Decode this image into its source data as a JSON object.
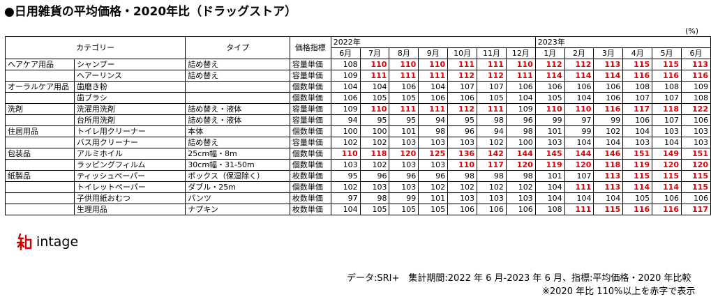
{
  "title": "●日用雑貨の平均価格・2020年比（ドラッグストア）",
  "unit": "(%)",
  "source": "データ:SRI+　集計期間:2022 年 6 月-2023 年 6 月、指標:平均価格・2020 年比較",
  "note": "※2020 年比 110%以上を赤字で表示",
  "logo_text": "intage",
  "colors": {
    "highlight": "#e00000",
    "text": "#000000"
  },
  "chart_data": {
    "type": "table",
    "headers": {
      "category": "カテゴリー",
      "type": "タイプ",
      "index": "価格指標"
    },
    "years": [
      {
        "label": "2022年",
        "span": 7
      },
      {
        "label": "2023年",
        "span": 6
      }
    ],
    "months": [
      "6月",
      "7月",
      "8月",
      "9月",
      "10月",
      "11月",
      "12月",
      "1月",
      "2月",
      "3月",
      "4月",
      "5月",
      "6月"
    ],
    "highlight_threshold": 110,
    "rows": [
      {
        "category": "ヘアケア用品",
        "item": "シャンプー",
        "type": "詰め替え",
        "index": "容量単価",
        "values": [
          108,
          110,
          110,
          110,
          111,
          111,
          110,
          112,
          112,
          113,
          115,
          115,
          113
        ]
      },
      {
        "category": "",
        "item": "ヘアーリンス",
        "type": "詰め替え",
        "index": "容量単価",
        "values": [
          109,
          111,
          111,
          111,
          112,
          112,
          111,
          114,
          114,
          114,
          116,
          116,
          116
        ]
      },
      {
        "category": "オーラルケア用品",
        "item": "歯磨き粉",
        "type": "",
        "index": "個数単価",
        "values": [
          104,
          104,
          106,
          104,
          107,
          107,
          106,
          106,
          106,
          106,
          108,
          108,
          109
        ]
      },
      {
        "category": "",
        "item": "歯ブラシ",
        "type": "",
        "index": "個数単価",
        "values": [
          106,
          105,
          105,
          106,
          106,
          105,
          104,
          105,
          104,
          106,
          107,
          107,
          108
        ]
      },
      {
        "category": "洗剤",
        "item": "洗濯用洗剤",
        "type": "詰め替え・液体",
        "index": "容量単価",
        "values": [
          109,
          110,
          111,
          111,
          112,
          111,
          109,
          110,
          110,
          116,
          117,
          118,
          122
        ]
      },
      {
        "category": "",
        "item": "台所用洗剤",
        "type": "詰め替え・液体",
        "index": "容量単価",
        "values": [
          94,
          95,
          95,
          94,
          95,
          98,
          96,
          99,
          97,
          99,
          106,
          107,
          106
        ]
      },
      {
        "category": "住居用品",
        "item": "トイレ用クリーナー",
        "type": "本体",
        "index": "個数単価",
        "values": [
          100,
          100,
          101,
          98,
          96,
          94,
          98,
          101,
          99,
          102,
          104,
          103,
          103
        ]
      },
      {
        "category": "",
        "item": "バス用クリーナー",
        "type": "詰め替え",
        "index": "容量単価",
        "values": [
          102,
          102,
          103,
          103,
          103,
          102,
          100,
          103,
          104,
          104,
          103,
          104,
          103
        ]
      },
      {
        "category": "包装品",
        "item": "アルミホイル",
        "type": "25cm幅・8m",
        "index": "個数単価",
        "values": [
          110,
          118,
          120,
          125,
          136,
          142,
          144,
          145,
          144,
          146,
          151,
          149,
          151
        ]
      },
      {
        "category": "",
        "item": "ラッピングフィルム",
        "type": "30cm幅・31-50m",
        "index": "個数単価",
        "values": [
          103,
          102,
          103,
          103,
          110,
          117,
          120,
          119,
          120,
          118,
          119,
          120,
          120
        ]
      },
      {
        "category": "紙製品",
        "item": "ティッシュペーパー",
        "type": "ボックス（保湿除く）",
        "index": "枚数単価",
        "values": [
          95,
          96,
          96,
          96,
          98,
          98,
          98,
          101,
          107,
          113,
          115,
          115,
          115
        ]
      },
      {
        "category": "",
        "item": "トイレットペーパー",
        "type": "ダブル・25m",
        "index": "個数単価",
        "values": [
          102,
          103,
          103,
          102,
          102,
          102,
          102,
          104,
          111,
          113,
          114,
          114,
          115
        ]
      },
      {
        "category": "",
        "item": "子供用紙おむつ",
        "type": "パンツ",
        "index": "枚数単価",
        "values": [
          97,
          98,
          99,
          101,
          103,
          103,
          103,
          104,
          104,
          104,
          105,
          106,
          106
        ]
      },
      {
        "category": "",
        "item": "生理用品",
        "type": "ナプキン",
        "index": "枚数単価",
        "values": [
          104,
          105,
          105,
          105,
          106,
          106,
          106,
          108,
          111,
          115,
          116,
          116,
          117
        ]
      }
    ]
  }
}
